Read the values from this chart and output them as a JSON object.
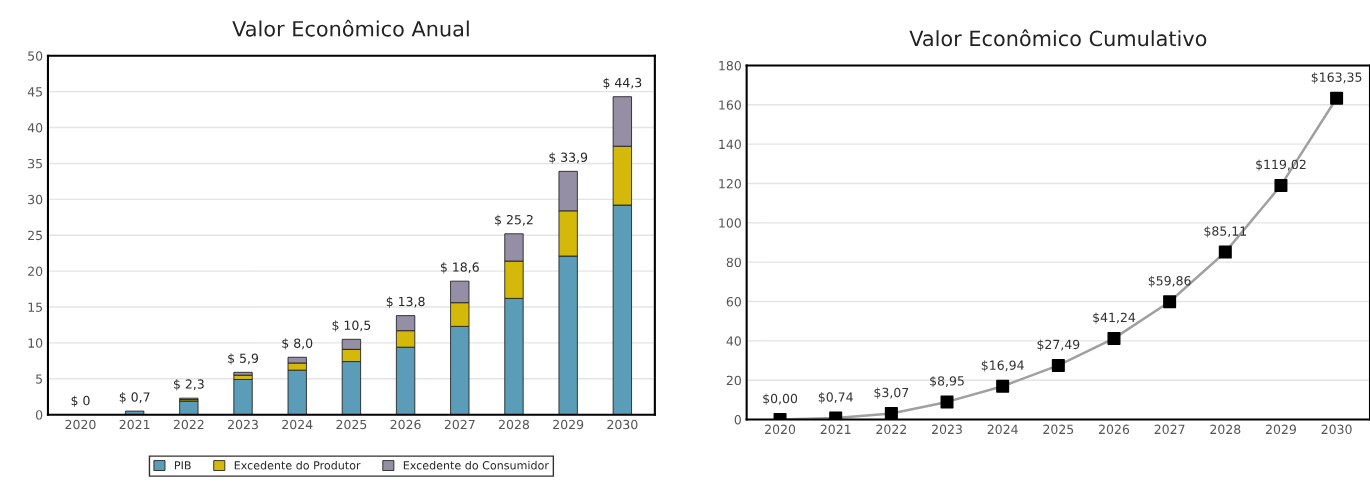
{
  "chart_data": [
    {
      "type": "bar",
      "title": "Valor Econômico Anual",
      "categories": [
        "2020",
        "2021",
        "2022",
        "2023",
        "2024",
        "2025",
        "2026",
        "2027",
        "2028",
        "2029",
        "2030"
      ],
      "stacked": true,
      "series": [
        {
          "name": "PIB",
          "color": "#5b9db8",
          "values": [
            null,
            0.5,
            1.9,
            4.9,
            6.2,
            7.4,
            9.4,
            12.3,
            16.2,
            22.1,
            29.2
          ]
        },
        {
          "name": "Excedente do Produtor",
          "color": "#d4b90a",
          "values": [
            null,
            null,
            0.2,
            0.6,
            1.0,
            1.7,
            2.3,
            3.3,
            5.2,
            6.3,
            8.2
          ]
        },
        {
          "name": "Excedente do Consumidor",
          "color": "#958fa6",
          "values": [
            null,
            null,
            0.2,
            0.4,
            0.8,
            1.4,
            2.1,
            3.0,
            3.8,
            5.5,
            6.9
          ]
        }
      ],
      "totals": [
        "$ 0",
        "$ 0,7",
        "$ 2,3",
        "$ 5,9",
        "$ 8,0",
        "$ 10,5",
        "$ 13,8",
        "$ 18,6",
        "$ 25,2",
        "$ 33,9",
        "$ 44,3"
      ],
      "ylim": [
        0,
        50
      ],
      "yticks": [
        0,
        5,
        10,
        15,
        20,
        25,
        30,
        35,
        40,
        45,
        50
      ],
      "grid": "y",
      "legend": "bottom"
    },
    {
      "type": "line",
      "title": "Valor Econômico Cumulativo",
      "categories": [
        "2020",
        "2021",
        "2022",
        "2023",
        "2024",
        "2025",
        "2026",
        "2027",
        "2028",
        "2029",
        "2030"
      ],
      "marker": "square",
      "series": [
        {
          "color": "#a0a0a0",
          "values": [
            0,
            0.74,
            3.07,
            8.95,
            16.94,
            27.49,
            41.24,
            59.86,
            85.11,
            119.02,
            163.35
          ],
          "value_labels": [
            "$0,00",
            "$0,74",
            "$3,07",
            "$8,95",
            "$16,94",
            "$27,49",
            "$41,24",
            "$59,86",
            "$85,11",
            "$119,02",
            "$163,35"
          ]
        }
      ],
      "ylim": [
        0,
        180
      ],
      "yticks": [
        0,
        20,
        40,
        60,
        80,
        100,
        120,
        140,
        160,
        180
      ],
      "grid": "y"
    }
  ]
}
